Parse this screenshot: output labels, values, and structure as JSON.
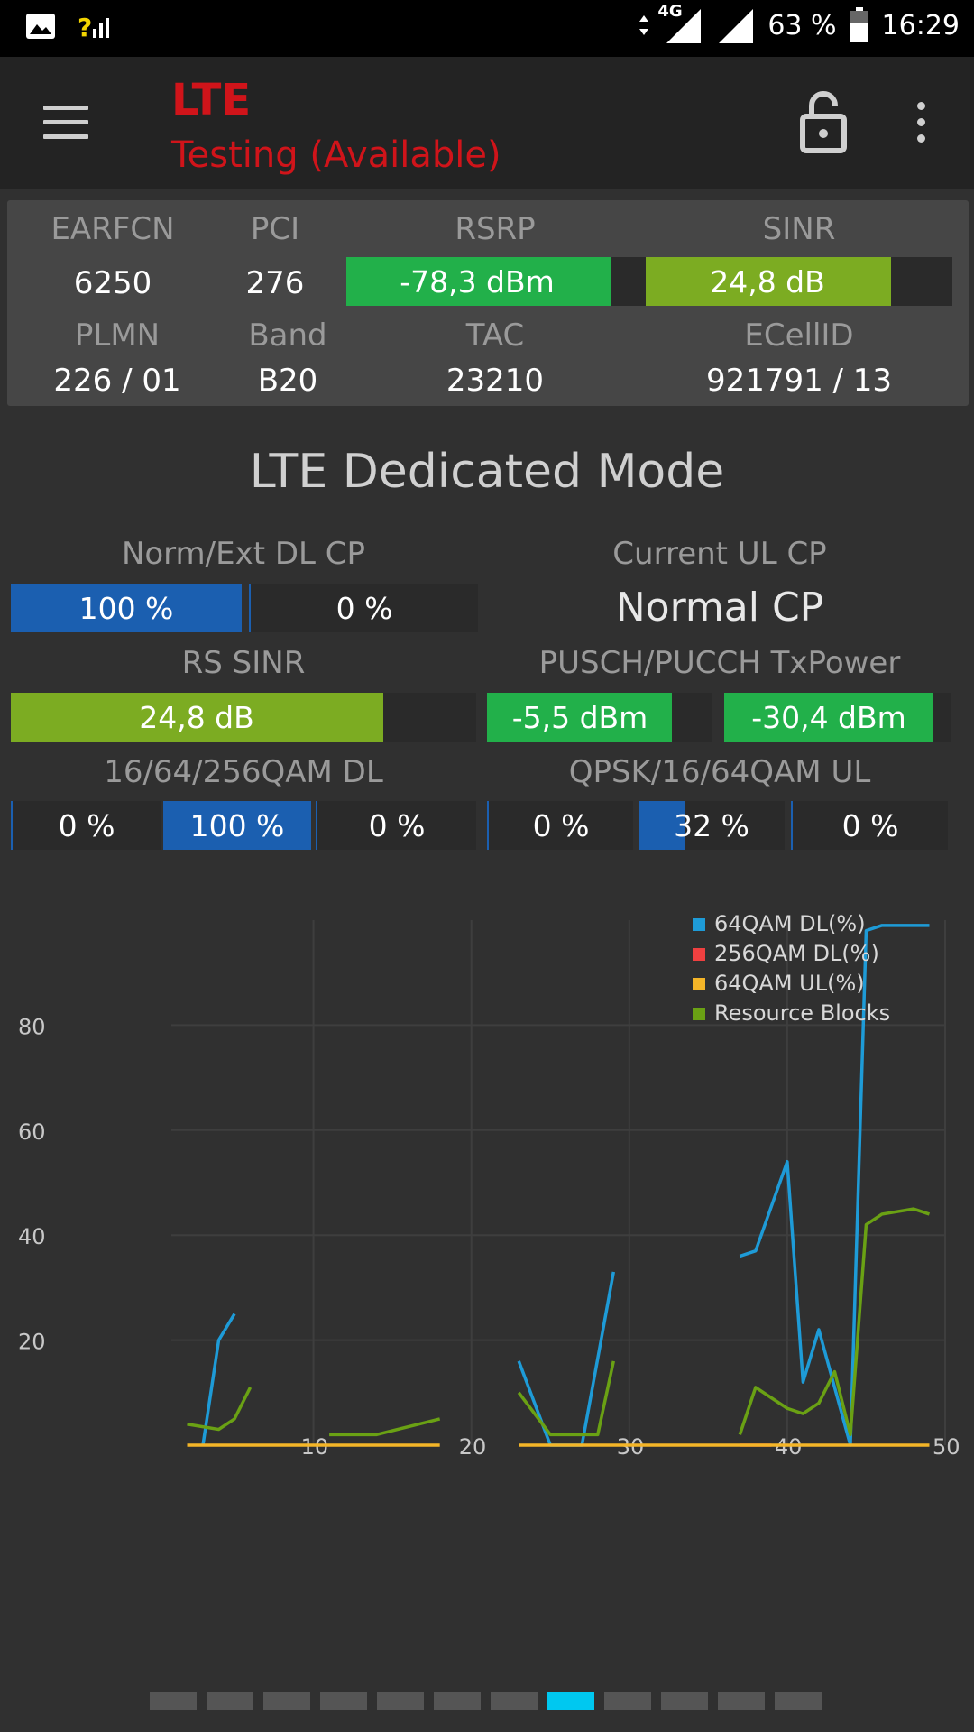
{
  "statusbar": {
    "network": "4G",
    "battery": "63 %",
    "time": "16:29"
  },
  "toolbar": {
    "title": "LTE",
    "subtitle": "Testing (Available)"
  },
  "cell": {
    "labels": {
      "earfcn": "EARFCN",
      "pci": "PCI",
      "rsrp": "RSRP",
      "sinr": "SINR",
      "plmn": "PLMN",
      "band": "Band",
      "tac": "TAC",
      "ecellid": "ECellID"
    },
    "earfcn": "6250",
    "pci": "276",
    "rsrp": {
      "text": "-78,3 dBm",
      "fill": 0.88,
      "color": "#22b04a"
    },
    "sinr": {
      "text": "24,8 dB",
      "fill": 0.8,
      "color": "#7cac22"
    },
    "plmn": "226 / 01",
    "band": "B20",
    "tac": "23210",
    "ecellid": "921791 / 13"
  },
  "section_title": "LTE Dedicated Mode",
  "dl_cp": {
    "label": "Norm/Ext DL CP",
    "normal": {
      "text": "100 %",
      "fill": 1.0
    },
    "extended": {
      "text": "0 %",
      "fill": 0.0
    }
  },
  "ul_cp": {
    "label": "Current UL CP",
    "value": "Normal CP"
  },
  "rs_sinr": {
    "label": "RS SINR",
    "text": "24,8 dB",
    "fill": 0.8
  },
  "txpower": {
    "label": "PUSCH/PUCCH TxPower",
    "pusch": {
      "text": "-5,5 dBm",
      "fill": 0.82
    },
    "pucch": {
      "text": "-30,4 dBm",
      "fill": 0.92
    }
  },
  "qam_dl": {
    "label": "16/64/256QAM DL",
    "values": [
      {
        "text": "0 %",
        "fill": 0.0
      },
      {
        "text": "100 %",
        "fill": 1.0
      },
      {
        "text": "0 %",
        "fill": 0.0
      }
    ]
  },
  "qam_ul": {
    "label": "QPSK/16/64QAM UL",
    "values": [
      {
        "text": "0 %",
        "fill": 0.0
      },
      {
        "text": "32 %",
        "fill": 0.32
      },
      {
        "text": "0 %",
        "fill": 0.0
      }
    ]
  },
  "colors": {
    "blue": "#1b5fb0",
    "green": "#22b04a",
    "olive": "#7cac22",
    "red": "#d0141a",
    "accent": "#00c8f0"
  },
  "chart_data": {
    "type": "line",
    "x_ticks": [
      "10",
      "20",
      "30",
      "40",
      "50"
    ],
    "y_ticks": [
      "20",
      "40",
      "60",
      "80"
    ],
    "xlim": [
      1,
      50
    ],
    "ylim": [
      0,
      100
    ],
    "grid": true,
    "legend": "top-right",
    "series": [
      {
        "name": "64QAM DL(%)",
        "color": "#1e9bd7",
        "segments": [
          [
            [
              3,
              0
            ],
            [
              4,
              20
            ],
            [
              5,
              25
            ]
          ],
          [
            [
              23,
              16
            ],
            [
              25,
              0
            ],
            [
              27,
              0
            ],
            [
              29,
              33
            ]
          ],
          [
            [
              37,
              36
            ],
            [
              38,
              37
            ],
            [
              40,
              54
            ],
            [
              41,
              12
            ],
            [
              42,
              22
            ],
            [
              44,
              0
            ],
            [
              45,
              98
            ],
            [
              46,
              99
            ],
            [
              49,
              99
            ]
          ]
        ]
      },
      {
        "name": "256QAM DL(%)",
        "color": "#ef4040",
        "segments": [
          [
            [
              37,
              0
            ],
            [
              39,
              0
            ]
          ]
        ]
      },
      {
        "name": "64QAM UL(%)",
        "color": "#f4b528",
        "segments": [
          [
            [
              2,
              0
            ],
            [
              18,
              0
            ]
          ],
          [
            [
              23,
              0
            ],
            [
              49,
              0
            ]
          ]
        ]
      },
      {
        "name": "Resource Blocks",
        "color": "#6aa114",
        "segments": [
          [
            [
              2,
              4
            ],
            [
              4,
              3
            ],
            [
              5,
              5
            ],
            [
              6,
              11
            ]
          ],
          [
            [
              11,
              2
            ],
            [
              14,
              2
            ],
            [
              18,
              5
            ]
          ],
          [
            [
              23,
              10
            ],
            [
              25,
              2
            ],
            [
              28,
              2
            ],
            [
              29,
              16
            ]
          ],
          [
            [
              37,
              2
            ],
            [
              38,
              11
            ],
            [
              39,
              9
            ],
            [
              40,
              7
            ],
            [
              41,
              6
            ],
            [
              42,
              8
            ],
            [
              43,
              14
            ],
            [
              44,
              2
            ],
            [
              45,
              42
            ],
            [
              46,
              44
            ],
            [
              48,
              45
            ],
            [
              49,
              44
            ]
          ]
        ]
      }
    ]
  },
  "pager": {
    "count": 12,
    "active": 7
  }
}
